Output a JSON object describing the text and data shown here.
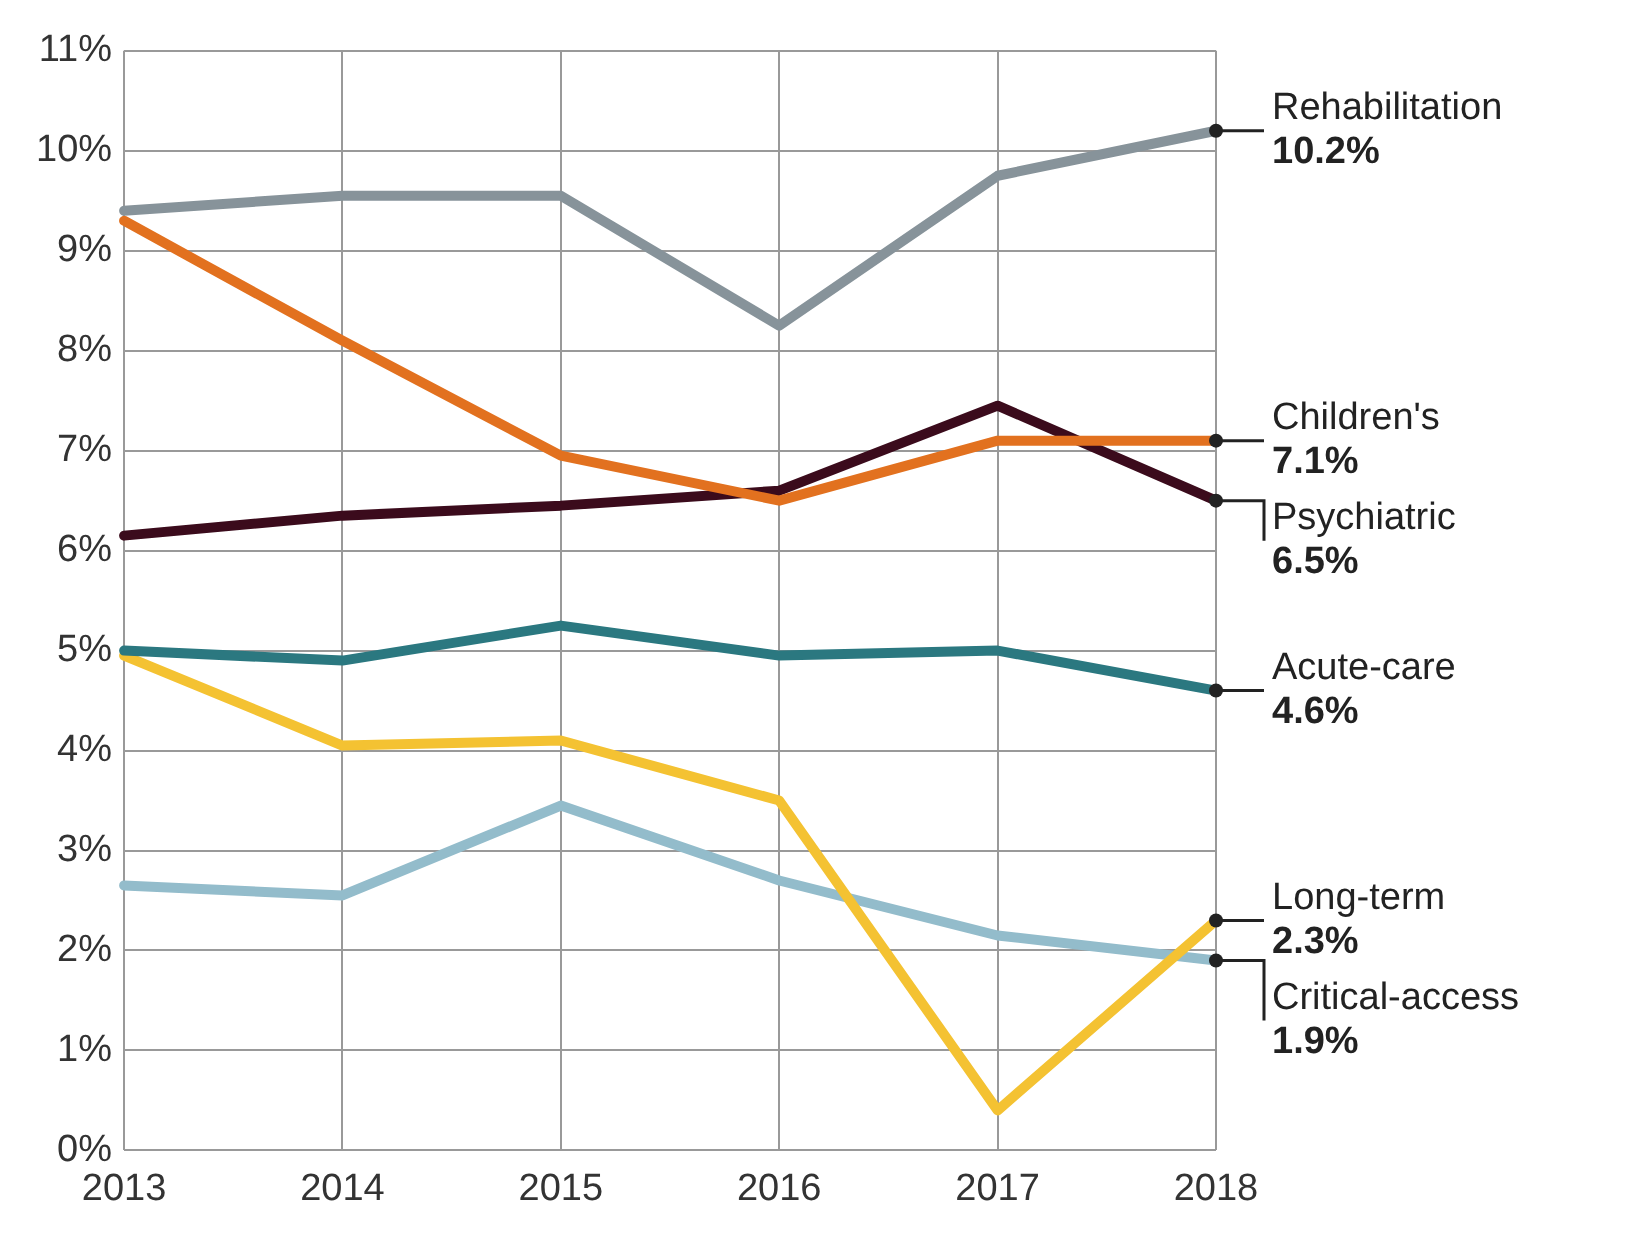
{
  "chart_data": {
    "type": "line",
    "categories": [
      "2013",
      "2014",
      "2015",
      "2016",
      "2017",
      "2018"
    ],
    "series": [
      {
        "name": "Rehabilitation",
        "color": "#87939a",
        "values": [
          9.4,
          9.55,
          9.55,
          8.25,
          9.75,
          10.2
        ],
        "value_labels": [
          null,
          null,
          null,
          null,
          null,
          "10.2%"
        ]
      },
      {
        "name": "Children's",
        "color": "#e2711f",
        "values": [
          9.3,
          8.1,
          6.95,
          6.5,
          7.1,
          7.1
        ],
        "value_labels": [
          null,
          null,
          null,
          null,
          null,
          "7.1%"
        ]
      },
      {
        "name": "Psychiatric",
        "color": "#3b0b1c",
        "values": [
          6.15,
          6.35,
          6.45,
          6.6,
          7.45,
          6.5
        ],
        "value_labels": [
          null,
          null,
          null,
          null,
          null,
          "6.5%"
        ]
      },
      {
        "name": "Acute-care",
        "color": "#2b7880",
        "values": [
          5.0,
          4.9,
          5.25,
          4.95,
          5.0,
          4.6
        ],
        "value_labels": [
          null,
          null,
          null,
          null,
          null,
          "4.6%"
        ]
      },
      {
        "name": "Long-term",
        "color": "#f4c232",
        "values": [
          4.95,
          4.05,
          4.1,
          3.5,
          0.4,
          2.3
        ],
        "value_labels": [
          null,
          null,
          null,
          null,
          null,
          "2.3%"
        ]
      },
      {
        "name": "Critical-access",
        "color": "#93bccb",
        "values": [
          2.65,
          2.55,
          3.45,
          2.7,
          2.15,
          1.9
        ],
        "value_labels": [
          null,
          null,
          null,
          null,
          null,
          "1.9%"
        ]
      }
    ],
    "ylim": [
      0,
      11
    ],
    "yticks": [
      {
        "value": 0,
        "label": "0%"
      },
      {
        "value": 1,
        "label": "1%"
      },
      {
        "value": 2,
        "label": "2%"
      },
      {
        "value": 3,
        "label": "3%"
      },
      {
        "value": 4,
        "label": "4%"
      },
      {
        "value": 5,
        "label": "5%"
      },
      {
        "value": 6,
        "label": "6%"
      },
      {
        "value": 7,
        "label": "7%"
      },
      {
        "value": 8,
        "label": "8%"
      },
      {
        "value": 9,
        "label": "9%"
      },
      {
        "value": 10,
        "label": "10%"
      },
      {
        "value": 11,
        "label": "11%"
      }
    ],
    "grid": true,
    "legend": false,
    "marker": "none",
    "line_style": "solid"
  }
}
